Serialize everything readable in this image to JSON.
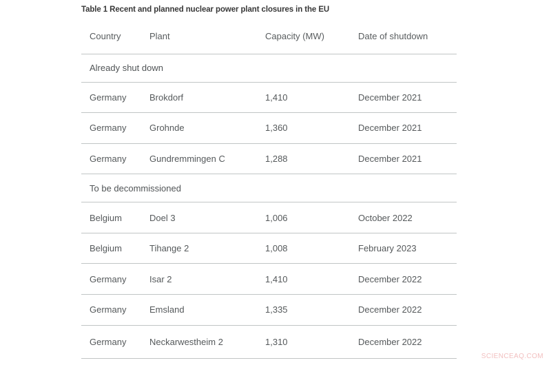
{
  "table": {
    "title": "Table 1 Recent and planned nuclear power plant closures in the EU",
    "columns": [
      "Country",
      "Plant",
      "Capacity (MW)",
      "Date of shutdown"
    ],
    "sections": [
      {
        "label": "Already shut down",
        "rows": [
          [
            "Germany",
            "Brokdorf",
            "1,410",
            "December 2021"
          ],
          [
            "Germany",
            "Grohnde",
            "1,360",
            "December 2021"
          ],
          [
            "Germany",
            "Gundremmingen C",
            "1,288",
            "December 2021"
          ]
        ]
      },
      {
        "label": "To be decommissioned",
        "rows": [
          [
            "Belgium",
            "Doel 3",
            "1,006",
            "October 2022"
          ],
          [
            "Belgium",
            "Tihange 2",
            "1,008",
            "February 2023"
          ],
          [
            "Germany",
            "Isar 2",
            "1,410",
            "December 2022"
          ],
          [
            "Germany",
            "Emsland",
            "1,335",
            "December 2022"
          ],
          [
            "Germany",
            "Neckarwestheim 2",
            "1,310",
            "December 2022"
          ]
        ]
      }
    ]
  },
  "watermark": "SCIENCEAQ.COM",
  "colors": {
    "rule_line": "#c1c5c5",
    "body_text": "#55595b",
    "title_text": "#383838",
    "watermark_text": "#f2bfbf",
    "background": "#ffffff"
  }
}
